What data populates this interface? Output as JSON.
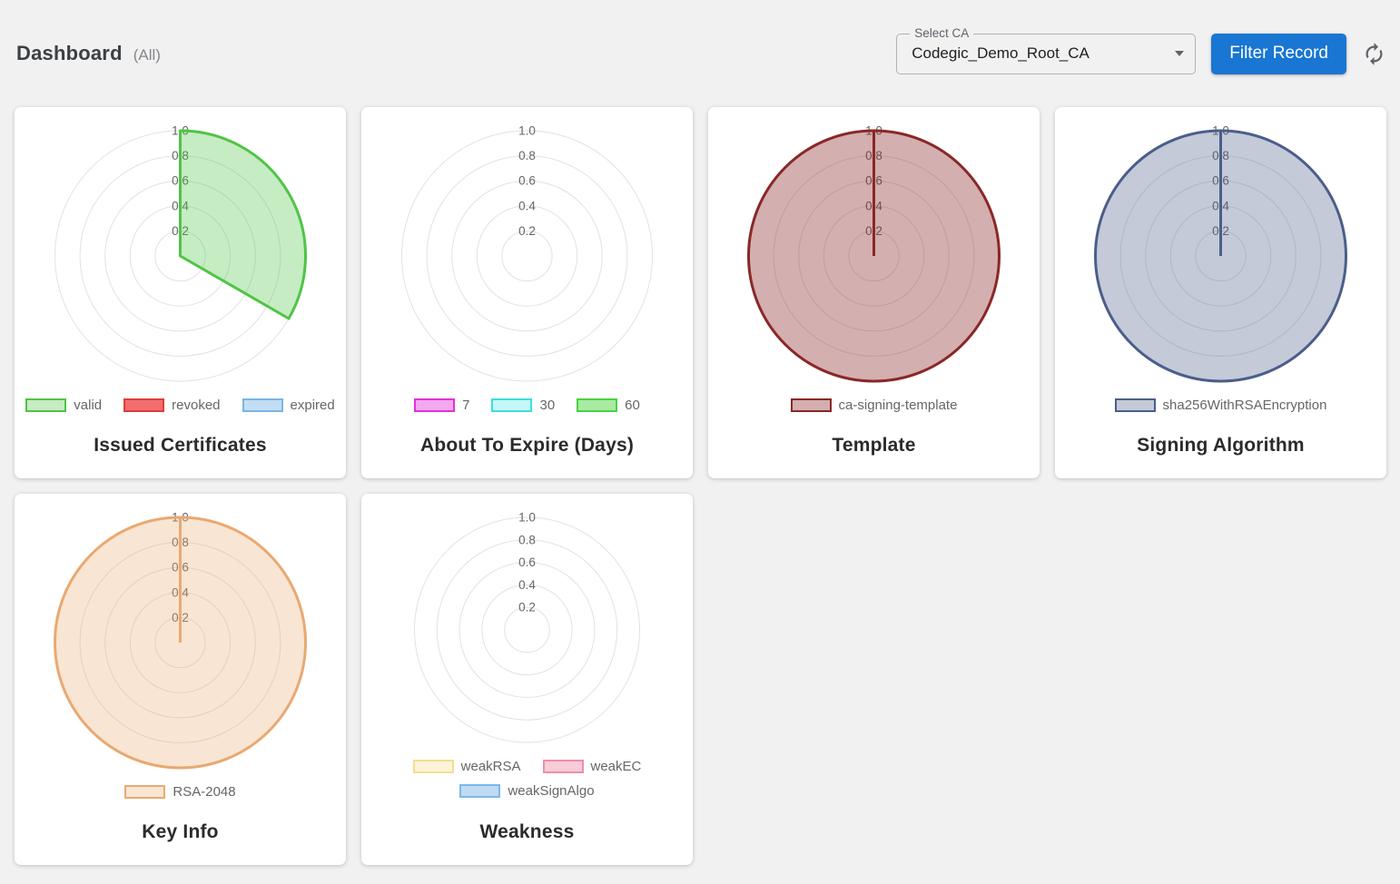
{
  "header": {
    "title": "Dashboard",
    "scope": "(All)",
    "select_ca": {
      "label": "Select CA",
      "value": "Codegic_Demo_Root_CA"
    },
    "filter_button_label": "Filter Record"
  },
  "icons": {
    "refresh": "refresh-icon",
    "select_arrow": "chevron-down-icon"
  },
  "theme": {
    "page_bg": "#f1f1f2",
    "card_bg": "#ffffff",
    "accent_blue": "#1976d2",
    "grid_line": "#e2e2e2",
    "tick_color": "#666666",
    "legend_text": "#666666",
    "title_color": "#2b2b2b"
  },
  "chart_data": [
    {
      "type": "polarArea",
      "title": "Issued Certificates",
      "categories": [
        "valid",
        "revoked",
        "expired"
      ],
      "values": [
        1.0,
        0,
        0
      ],
      "colors": [
        {
          "fill": "rgba(80,196,70,0.33)",
          "border": "#50c446"
        },
        {
          "fill": "rgba(240,85,85,0.85)",
          "border": "#e03c3c"
        },
        {
          "fill": "rgba(121,181,230,0.45)",
          "border": "#79b5e6"
        }
      ],
      "scale": {
        "min": 0,
        "max": 1.0,
        "ticks": [
          0.2,
          0.4,
          0.6,
          0.8,
          1.0
        ]
      },
      "grid": true,
      "start_angle_deg": 0,
      "direction": "clockwise",
      "legend_position": "bottom",
      "legend_rows": 1
    },
    {
      "type": "polarArea",
      "title": "About To Expire (Days)",
      "categories": [
        "7",
        "30",
        "60"
      ],
      "values": [
        0,
        0,
        0
      ],
      "colors": [
        {
          "fill": "rgba(226,48,217,0.42)",
          "border": "#e230d9"
        },
        {
          "fill": "rgba(57,224,224,0.29)",
          "border": "#39e0e0"
        },
        {
          "fill": "rgba(73,211,62,0.47)",
          "border": "#49d33e"
        }
      ],
      "scale": {
        "min": 0,
        "max": 1.0,
        "ticks": [
          0.2,
          0.4,
          0.6,
          0.8,
          1.0
        ]
      },
      "grid": true,
      "start_angle_deg": 0,
      "direction": "clockwise",
      "legend_position": "bottom",
      "legend_rows": 1
    },
    {
      "type": "polarArea",
      "title": "Template",
      "categories": [
        "ca-signing-template"
      ],
      "values": [
        1.0
      ],
      "colors": [
        {
          "fill": "rgba(139,39,39,0.37)",
          "border": "#8b2727"
        }
      ],
      "scale": {
        "min": 0,
        "max": 1.0,
        "ticks": [
          0.2,
          0.4,
          0.6,
          0.8,
          1.0
        ]
      },
      "grid": true,
      "start_angle_deg": 0,
      "direction": "clockwise",
      "legend_position": "bottom",
      "legend_rows": 1
    },
    {
      "type": "polarArea",
      "title": "Signing Algorithm",
      "categories": [
        "sha256WithRSAEncryption"
      ],
      "values": [
        1.0
      ],
      "colors": [
        {
          "fill": "rgba(75,94,138,0.33)",
          "border": "#4b5e8a"
        }
      ],
      "scale": {
        "min": 0,
        "max": 1.0,
        "ticks": [
          0.2,
          0.4,
          0.6,
          0.8,
          1.0
        ]
      },
      "grid": true,
      "start_angle_deg": 0,
      "direction": "clockwise",
      "legend_position": "bottom",
      "legend_rows": 1
    },
    {
      "type": "polarArea",
      "title": "Key Info",
      "categories": [
        "RSA-2048"
      ],
      "values": [
        1.0
      ],
      "colors": [
        {
          "fill": "rgba(233,169,113,0.30)",
          "border": "#e9a971"
        }
      ],
      "scale": {
        "min": 0,
        "max": 1.0,
        "ticks": [
          0.2,
          0.4,
          0.6,
          0.8,
          1.0
        ]
      },
      "grid": true,
      "start_angle_deg": 0,
      "direction": "clockwise",
      "legend_position": "bottom",
      "legend_rows": 1
    },
    {
      "type": "polarArea",
      "title": "Weakness",
      "categories": [
        "weakRSA",
        "weakEC",
        "weakSignAlgo"
      ],
      "values": [
        0,
        0,
        0
      ],
      "colors": [
        {
          "fill": "rgba(245,221,144,0.35)",
          "border": "#f5dd90"
        },
        {
          "fill": "rgba(239,143,168,0.45)",
          "border": "#ef8fa8"
        },
        {
          "fill": "rgba(125,184,232,0.50)",
          "border": "#7db8e8"
        }
      ],
      "scale": {
        "min": 0,
        "max": 1.0,
        "ticks": [
          0.2,
          0.4,
          0.6,
          0.8,
          1.0
        ]
      },
      "grid": true,
      "start_angle_deg": 0,
      "direction": "clockwise",
      "legend_position": "bottom",
      "legend_rows": 2
    }
  ]
}
